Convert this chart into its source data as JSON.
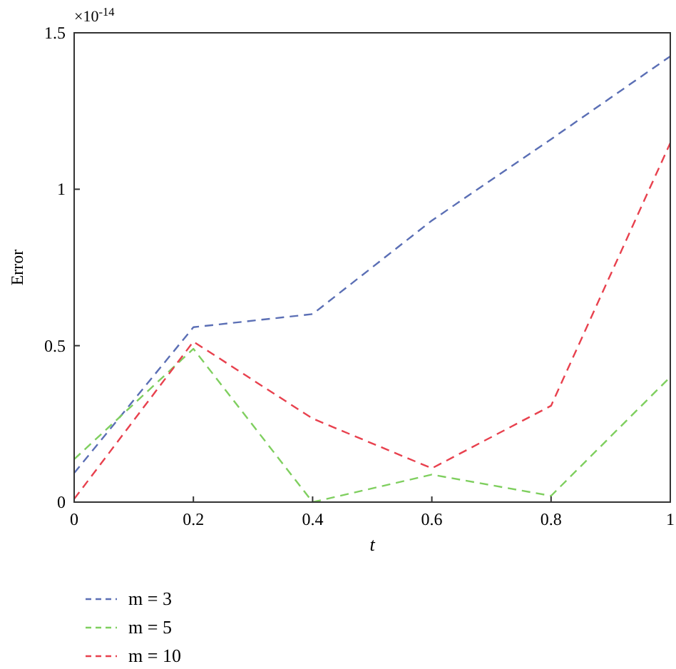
{
  "chart_data": {
    "type": "line",
    "xlabel": "t",
    "ylabel": "Error",
    "annotations": [
      "×10$^{-14}$"
    ],
    "x": [
      0,
      0.2,
      0.4,
      0.6,
      0.8,
      1
    ],
    "series": [
      {
        "name": "m = 3",
        "color": "#5b6fb5",
        "values": [
          0.093,
          0.559,
          0.601,
          0.9,
          1.16,
          1.425
        ]
      },
      {
        "name": "m = 5",
        "color": "#7fcf5f",
        "values": [
          0.137,
          0.49,
          0,
          0.088,
          0.02,
          0.4
        ]
      },
      {
        "name": "m = 10",
        "color": "#e8414e",
        "values": [
          0.01,
          0.513,
          0.267,
          0.108,
          0.308,
          1.148
        ]
      }
    ],
    "xlim": [
      0,
      1
    ],
    "xticks": [
      0,
      0.2,
      0.4,
      0.6,
      0.8,
      1
    ],
    "ylim": [
      0,
      1.5
    ],
    "yticks": [
      0,
      0.5,
      1,
      1.5
    ],
    "legend": "bottom left",
    "line_style": "dashed",
    "grid": false
  }
}
